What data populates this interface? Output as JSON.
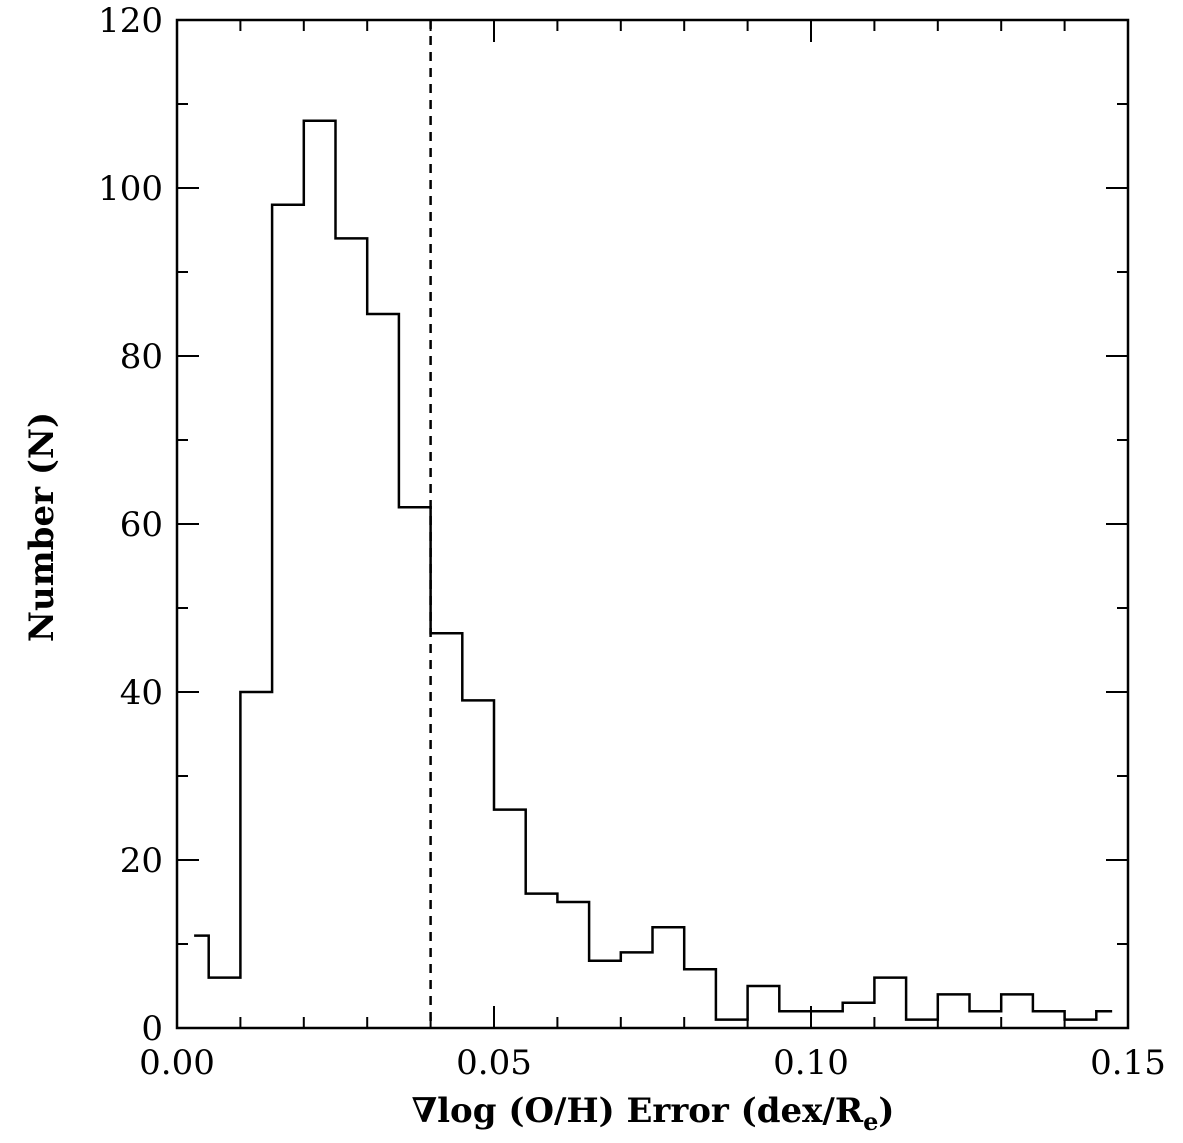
{
  "chart_data": {
    "type": "bar",
    "histogram": true,
    "title": "",
    "xlabel_prefix": "∇log (O/H) Error (dex/R",
    "xlabel_sub": "e",
    "xlabel_suffix": ")",
    "ylabel": "Number (N)",
    "xlim": [
      0.0,
      0.15
    ],
    "ylim": [
      0,
      120
    ],
    "x_ticks": [
      0.0,
      0.05,
      0.1,
      0.15
    ],
    "x_tick_labels": [
      "0.00",
      "0.05",
      "0.10",
      "0.15"
    ],
    "y_ticks": [
      0,
      20,
      40,
      60,
      80,
      100,
      120
    ],
    "y_tick_labels": [
      "0",
      "20",
      "40",
      "60",
      "80",
      "100",
      "120"
    ],
    "x_minor_step": 0.01,
    "y_minor_step": 10,
    "reference_line_x": 0.04,
    "bins": [
      {
        "x0": 0.0027,
        "x1": 0.005,
        "count": 11
      },
      {
        "x0": 0.005,
        "x1": 0.01,
        "count": 6
      },
      {
        "x0": 0.01,
        "x1": 0.015,
        "count": 40
      },
      {
        "x0": 0.015,
        "x1": 0.02,
        "count": 98
      },
      {
        "x0": 0.02,
        "x1": 0.025,
        "count": 108
      },
      {
        "x0": 0.025,
        "x1": 0.03,
        "count": 94
      },
      {
        "x0": 0.03,
        "x1": 0.035,
        "count": 85
      },
      {
        "x0": 0.035,
        "x1": 0.04,
        "count": 62
      },
      {
        "x0": 0.04,
        "x1": 0.045,
        "count": 47
      },
      {
        "x0": 0.045,
        "x1": 0.05,
        "count": 39
      },
      {
        "x0": 0.05,
        "x1": 0.055,
        "count": 26
      },
      {
        "x0": 0.055,
        "x1": 0.06,
        "count": 16
      },
      {
        "x0": 0.06,
        "x1": 0.065,
        "count": 15
      },
      {
        "x0": 0.065,
        "x1": 0.07,
        "count": 8
      },
      {
        "x0": 0.07,
        "x1": 0.075,
        "count": 9
      },
      {
        "x0": 0.075,
        "x1": 0.08,
        "count": 12
      },
      {
        "x0": 0.08,
        "x1": 0.085,
        "count": 7
      },
      {
        "x0": 0.085,
        "x1": 0.09,
        "count": 1
      },
      {
        "x0": 0.09,
        "x1": 0.095,
        "count": 5
      },
      {
        "x0": 0.095,
        "x1": 0.1,
        "count": 2
      },
      {
        "x0": 0.1,
        "x1": 0.105,
        "count": 2
      },
      {
        "x0": 0.105,
        "x1": 0.11,
        "count": 3
      },
      {
        "x0": 0.11,
        "x1": 0.115,
        "count": 6
      },
      {
        "x0": 0.115,
        "x1": 0.12,
        "count": 1
      },
      {
        "x0": 0.12,
        "x1": 0.125,
        "count": 4
      },
      {
        "x0": 0.125,
        "x1": 0.13,
        "count": 2
      },
      {
        "x0": 0.13,
        "x1": 0.135,
        "count": 4
      },
      {
        "x0": 0.135,
        "x1": 0.14,
        "count": 2
      },
      {
        "x0": 0.14,
        "x1": 0.145,
        "count": 1
      },
      {
        "x0": 0.145,
        "x1": 0.1475,
        "count": 2
      }
    ],
    "grid": false,
    "legend": "none"
  }
}
